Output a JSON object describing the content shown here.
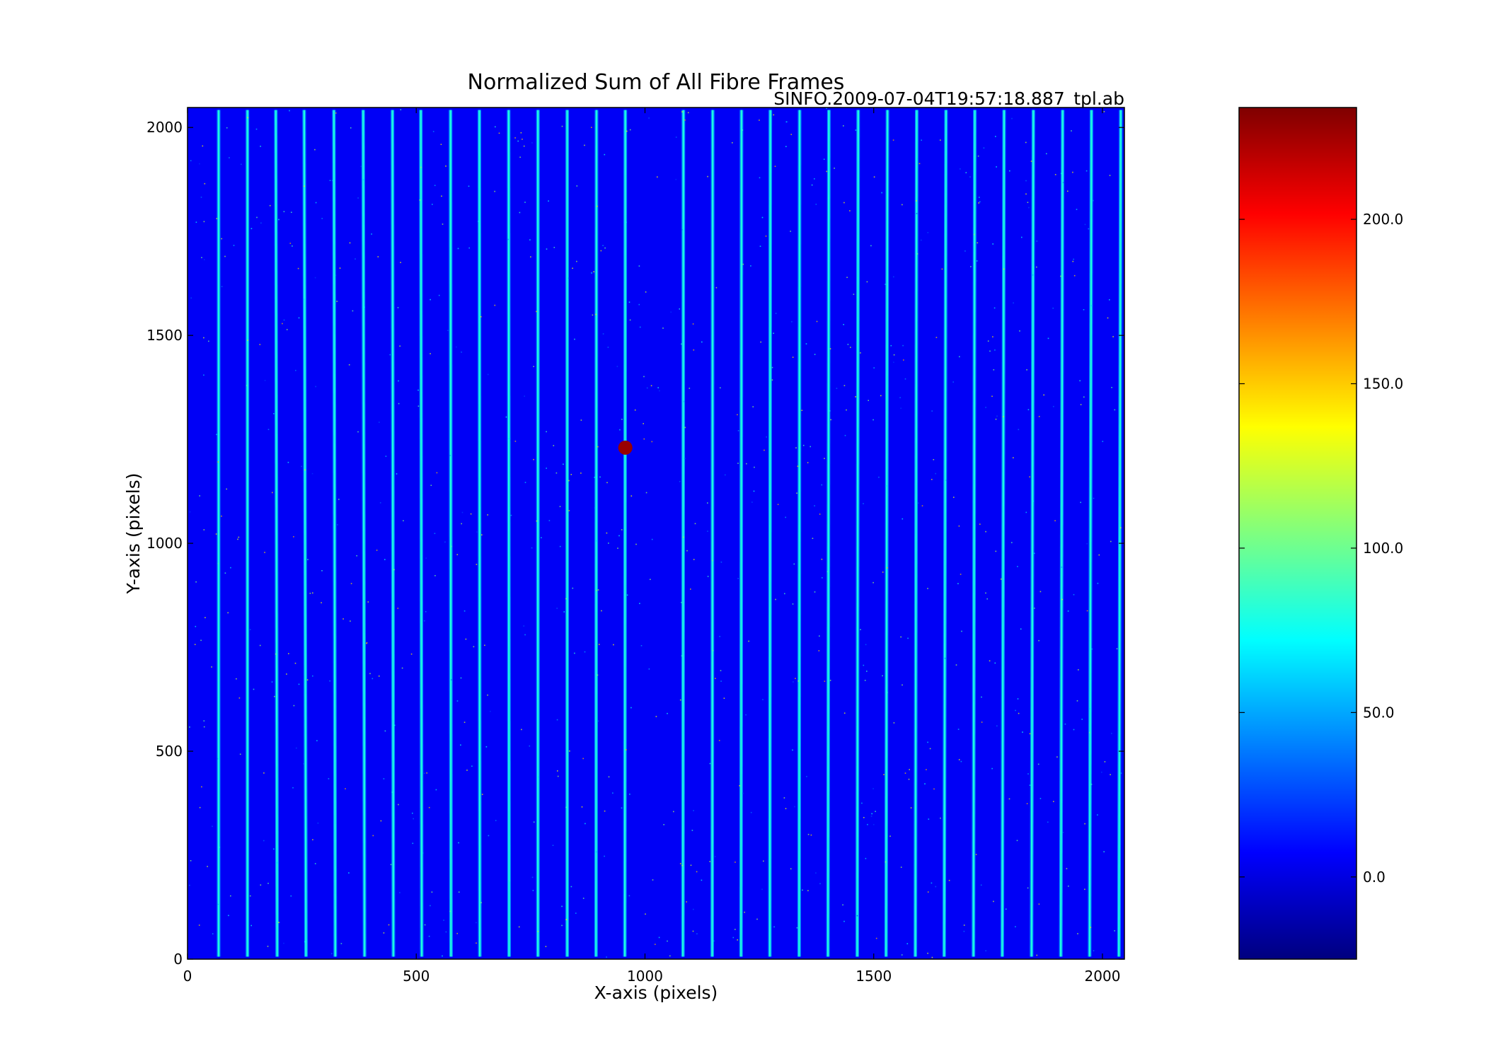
{
  "chart_data": {
    "type": "heatmap",
    "title": "Normalized Sum of All Fibre Frames",
    "subtitle": "SINFO.2009-07-04T19:57:18.887_tpl.ab",
    "xlabel": "X-axis (pixels)",
    "ylabel": "Y-axis (pixels)",
    "xlim": [
      0,
      2048
    ],
    "ylim": [
      0,
      2048
    ],
    "x_ticks": [
      0,
      500,
      1000,
      1500,
      2000
    ],
    "y_ticks": [
      0,
      500,
      1000,
      1500,
      2000
    ],
    "x_tick_labels": [
      "0",
      "500",
      "1000",
      "1500",
      "2000"
    ],
    "y_tick_labels": [
      "0",
      "500",
      "1000",
      "1500",
      "2000"
    ],
    "colormap": "jet",
    "background_value": 5,
    "fibre_traces": [
      {
        "x_bottom": 68,
        "x_top": 68,
        "value": 80
      },
      {
        "x_bottom": 131,
        "x_top": 131,
        "value": 80
      },
      {
        "x_bottom": 196,
        "x_top": 193,
        "value": 80
      },
      {
        "x_bottom": 259,
        "x_top": 255,
        "value": 80
      },
      {
        "x_bottom": 323,
        "x_top": 320,
        "value": 80
      },
      {
        "x_bottom": 387,
        "x_top": 384,
        "value": 80
      },
      {
        "x_bottom": 450,
        "x_top": 448,
        "value": 80
      },
      {
        "x_bottom": 512,
        "x_top": 510,
        "value": 80
      },
      {
        "x_bottom": 576,
        "x_top": 575,
        "value": 80
      },
      {
        "x_bottom": 639,
        "x_top": 638,
        "value": 80
      },
      {
        "x_bottom": 703,
        "x_top": 702,
        "value": 80
      },
      {
        "x_bottom": 766,
        "x_top": 766,
        "value": 80
      },
      {
        "x_bottom": 830,
        "x_top": 830,
        "value": 80
      },
      {
        "x_bottom": 893,
        "x_top": 894,
        "value": 80
      },
      {
        "x_bottom": 956,
        "x_top": 957,
        "value": 80
      },
      {
        "x_bottom": 1083,
        "x_top": 1084,
        "value": 80
      },
      {
        "x_bottom": 1147,
        "x_top": 1148,
        "value": 80
      },
      {
        "x_bottom": 1210,
        "x_top": 1211,
        "value": 80
      },
      {
        "x_bottom": 1273,
        "x_top": 1274,
        "value": 80
      },
      {
        "x_bottom": 1337,
        "x_top": 1338,
        "value": 80
      },
      {
        "x_bottom": 1400,
        "x_top": 1402,
        "value": 80
      },
      {
        "x_bottom": 1464,
        "x_top": 1466,
        "value": 80
      },
      {
        "x_bottom": 1527,
        "x_top": 1530,
        "value": 80
      },
      {
        "x_bottom": 1591,
        "x_top": 1594,
        "value": 80
      },
      {
        "x_bottom": 1654,
        "x_top": 1658,
        "value": 80
      },
      {
        "x_bottom": 1718,
        "x_top": 1721,
        "value": 80
      },
      {
        "x_bottom": 1781,
        "x_top": 1785,
        "value": 80
      },
      {
        "x_bottom": 1845,
        "x_top": 1849,
        "value": 80
      },
      {
        "x_bottom": 1909,
        "x_top": 1913,
        "value": 80
      },
      {
        "x_bottom": 1972,
        "x_top": 1976,
        "value": 80
      },
      {
        "x_bottom": 2036,
        "x_top": 2040,
        "value": 80
      }
    ],
    "marker": {
      "x": 957,
      "y": 1230,
      "color": "#990000"
    },
    "colorbar": {
      "vmin": -25,
      "vmax": 234,
      "ticks": [
        0,
        50,
        100,
        150,
        200
      ],
      "tick_labels": [
        "0.0",
        "50.0",
        "100.0",
        "150.0",
        "200.0"
      ],
      "colors": [
        "#00007f",
        "#0000ff",
        "#007fff",
        "#00ffff",
        "#7fff7f",
        "#ffff00",
        "#ff7f00",
        "#ff0000",
        "#7f0000"
      ]
    }
  }
}
